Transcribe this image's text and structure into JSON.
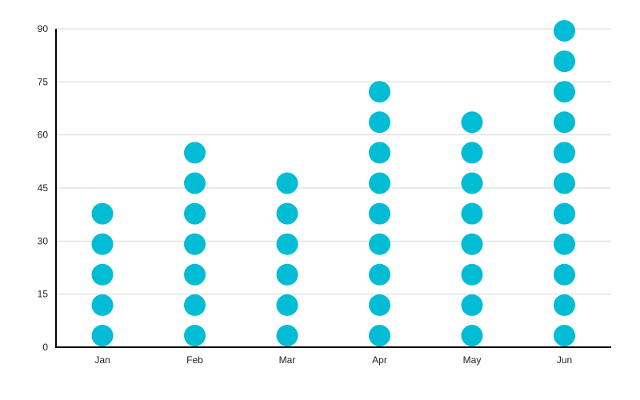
{
  "chart_data": {
    "type": "scatter",
    "subtype": "dot-pictogram",
    "title": "",
    "xlabel": "",
    "ylabel": "",
    "categories": [
      "Jan",
      "Feb",
      "Mar",
      "Apr",
      "May",
      "Jun"
    ],
    "dot_counts": [
      5,
      7,
      6,
      9,
      8,
      11
    ],
    "values": [
      38,
      55,
      46,
      72,
      63,
      89
    ],
    "ylim": [
      0,
      90
    ],
    "yticks": [
      0,
      15,
      30,
      45,
      60,
      75,
      90
    ],
    "ytick_labels": [
      "0",
      "15",
      "30",
      "45",
      "60",
      "75",
      "90"
    ],
    "grid": true,
    "legend": "none",
    "colors": {
      "dot": "#00BCD4",
      "grid": "#D6D6D6",
      "axis": "#000000",
      "text": "#222222"
    }
  }
}
